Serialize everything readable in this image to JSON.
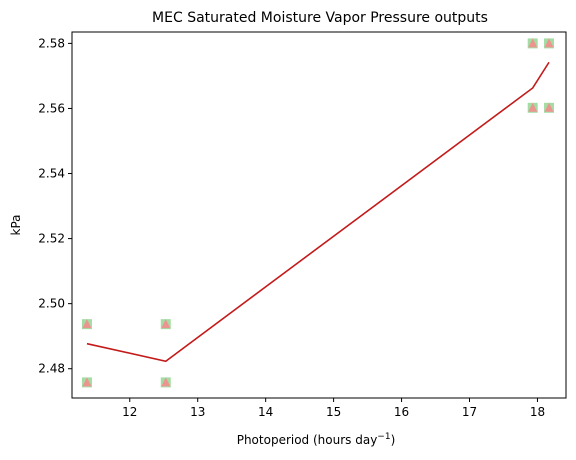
{
  "chart_data": {
    "type": "scatter",
    "title": "MEC Saturated Moisture Vapor Pressure outputs",
    "xlabel": "Photoperiod (hours day",
    "xlabel_sup": "−1",
    "xlabel_tail": ")",
    "ylabel": "kPa",
    "xlim": [
      11.15,
      18.42
    ],
    "ylim": [
      2.471,
      2.5835
    ],
    "xticks": [
      12,
      13,
      14,
      15,
      16,
      17,
      18
    ],
    "yticks": [
      2.48,
      2.5,
      2.52,
      2.54,
      2.56,
      2.58
    ],
    "ytick_labels": [
      "2.48",
      "2.50",
      "2.52",
      "2.54",
      "2.56",
      "2.58"
    ],
    "grid": false,
    "colors": {
      "line": "#c41a1a",
      "marker_square": "#9ad99a",
      "marker_triangle": "#f08f8f"
    },
    "series": [
      {
        "marker": "square",
        "x": [
          11.37,
          11.37,
          12.53,
          12.53,
          17.93,
          17.93,
          18.17,
          18.17
        ],
        "y": [
          2.4937,
          2.4758,
          2.4937,
          2.4758,
          2.58,
          2.5602,
          2.58,
          2.5602
        ]
      },
      {
        "marker": "triangle",
        "x": [
          11.37,
          11.37,
          12.53,
          12.53,
          17.93,
          17.93,
          18.17,
          18.17
        ],
        "y": [
          2.4937,
          2.4758,
          2.4937,
          2.4758,
          2.58,
          2.5602,
          2.58,
          2.5602
        ]
      },
      {
        "marker": "none",
        "type": "line",
        "x": [
          11.37,
          12.53,
          17.93,
          18.17
        ],
        "y": [
          2.4877,
          2.4823,
          2.5663,
          2.5742
        ]
      }
    ]
  }
}
